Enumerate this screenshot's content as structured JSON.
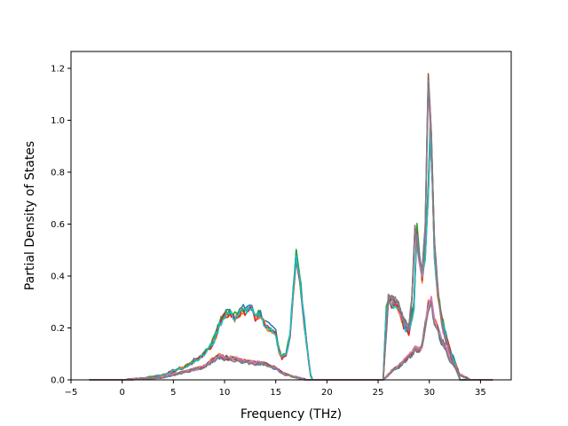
{
  "chart_data": {
    "type": "line",
    "title": "",
    "xlabel": "Frequency (THz)",
    "ylabel": "Partial Density of States",
    "xlim": [
      -5.0,
      38.0
    ],
    "ylim": [
      0.0,
      1.265
    ],
    "xticks": [
      -5,
      0,
      5,
      10,
      15,
      20,
      25,
      30,
      35
    ],
    "xtick_labels": [
      "−5",
      "0",
      "5",
      "10",
      "15",
      "20",
      "25",
      "30",
      "35"
    ],
    "yticks": [
      0.0,
      0.2,
      0.4,
      0.6,
      0.8,
      1.0,
      1.2
    ],
    "ytick_labels": [
      "0.0",
      "0.2",
      "0.4",
      "0.6",
      "0.8",
      "1.0",
      "1.2"
    ],
    "grid": false,
    "legend": "none",
    "colors": [
      "#1f77b4",
      "#ff7f0e",
      "#2ca02c",
      "#d62728",
      "#9467bd",
      "#8c564b",
      "#e377c2",
      "#7f7f7f",
      "#bcbd22",
      "#17becf"
    ],
    "groups": [
      {
        "kind": "high",
        "series_colors": [
          "#1f77b4",
          "#ff7f0e",
          "#2ca02c",
          "#d62728",
          "#17becf"
        ],
        "x": [
          -3.2,
          0,
          2,
          4,
          6,
          8,
          9,
          9.5,
          10,
          10.5,
          11,
          11.5,
          12,
          12.5,
          13,
          13.5,
          14,
          14.5,
          15,
          15.3,
          15.6,
          16,
          16.4,
          16.7,
          17,
          17.3,
          17.6,
          18,
          18.4,
          18.6,
          20,
          25.5,
          25.8,
          26,
          26.5,
          27,
          27.5,
          28,
          28.5,
          28.8,
          29,
          29.3,
          29.6,
          29.9,
          30.1,
          30.3,
          30.5,
          30.8,
          31.2,
          31.6,
          32,
          32.5,
          32.8,
          33,
          34,
          36.2
        ],
        "y": [
          0.0,
          0.0,
          0.005,
          0.02,
          0.05,
          0.1,
          0.16,
          0.22,
          0.26,
          0.27,
          0.25,
          0.27,
          0.28,
          0.29,
          0.25,
          0.26,
          0.22,
          0.2,
          0.19,
          0.12,
          0.09,
          0.1,
          0.18,
          0.35,
          0.5,
          0.42,
          0.3,
          0.15,
          0.02,
          0.0,
          0.0,
          0.0,
          0.28,
          0.32,
          0.3,
          0.29,
          0.22,
          0.19,
          0.3,
          0.6,
          0.5,
          0.4,
          0.5,
          0.75,
          1.0,
          0.8,
          0.5,
          0.35,
          0.25,
          0.18,
          0.12,
          0.07,
          0.04,
          0.0,
          0.0,
          0.0
        ]
      },
      {
        "kind": "low",
        "series_colors": [
          "#1f77b4",
          "#ff7f0e",
          "#2ca02c",
          "#d62728",
          "#9467bd",
          "#8c564b",
          "#e377c2",
          "#7f7f7f"
        ],
        "x": [
          -3.2,
          0,
          4,
          8,
          9,
          9.5,
          10,
          11,
          12,
          13,
          14,
          15,
          15.5,
          16,
          16.5,
          17,
          17.5,
          18,
          18.5,
          20,
          25.5,
          26,
          26.5,
          27,
          27.5,
          28,
          28.3,
          28.6,
          29,
          29.3,
          29.6,
          29.9,
          30.2,
          30.5,
          30.8,
          31.2,
          31.6,
          32,
          32.5,
          33,
          34,
          36.2
        ],
        "y": [
          0.0,
          0.0,
          0.01,
          0.05,
          0.08,
          0.09,
          0.085,
          0.08,
          0.07,
          0.065,
          0.06,
          0.045,
          0.03,
          0.02,
          0.015,
          0.01,
          0.005,
          0.0,
          0.0,
          0.0,
          0.0,
          0.02,
          0.04,
          0.05,
          0.07,
          0.09,
          0.1,
          0.12,
          0.11,
          0.13,
          0.2,
          0.28,
          0.3,
          0.22,
          0.2,
          0.15,
          0.12,
          0.08,
          0.05,
          0.02,
          0.0,
          0.0
        ]
      },
      {
        "kind": "mid",
        "series_colors": [
          "#e377c2",
          "#9467bd",
          "#8c564b",
          "#7f7f7f"
        ],
        "x": [
          25.5,
          26,
          26.5,
          27,
          27.5,
          28,
          28.3,
          28.6,
          29,
          29.3,
          29.6,
          29.9,
          30.2,
          30.5,
          30.8,
          31.2,
          32,
          33
        ],
        "y": [
          0.0,
          0.3,
          0.3,
          0.27,
          0.22,
          0.19,
          0.3,
          0.55,
          0.45,
          0.4,
          0.55,
          1.1,
          0.9,
          0.5,
          0.35,
          0.2,
          0.1,
          0.0
        ]
      }
    ]
  }
}
